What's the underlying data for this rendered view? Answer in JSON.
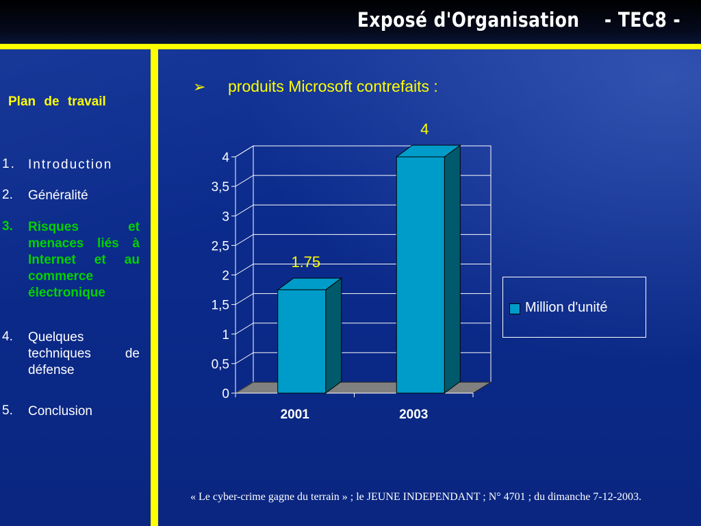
{
  "header": {
    "title": "Exposé d'Organisation    - TEC8 -"
  },
  "sidebar": {
    "title": "Plan de travail",
    "items": [
      {
        "num": "1.",
        "label": "Introduction"
      },
      {
        "num": "2.",
        "label": "Généralité"
      },
      {
        "num": "3.",
        "label": "Risques et menaces liés à Internet et au commerce électronique"
      },
      {
        "num": "4.",
        "label": "Quelques techniques de défense"
      },
      {
        "num": "5.",
        "label": "Conclusion"
      }
    ]
  },
  "main": {
    "bullet": "➢",
    "subtitle": "produits Microsoft contrefaits :",
    "source": "« Le cyber-crime gagne du terrain » ; le JEUNE INDEPENDANT ; N° 4701 ; du dimanche 7-12-2003."
  },
  "colors": {
    "background": "#0b2a8c",
    "accent": "#ffff00",
    "active_item": "#00d200",
    "bar_front": "#009cc9",
    "bar_side": "#005a6b",
    "floor": "#808080"
  },
  "chart_data": {
    "type": "bar",
    "categories": [
      "2001",
      "2003"
    ],
    "series": [
      {
        "name": "Million d'unité",
        "values": [
          1.75,
          4
        ]
      }
    ],
    "data_labels": [
      "1.75",
      "4"
    ],
    "yticks": [
      "0",
      "0,5",
      "1",
      "1,5",
      "2",
      "2,5",
      "3",
      "3,5",
      "4"
    ],
    "ylim": [
      0,
      4
    ],
    "title": "",
    "xlabel": "",
    "ylabel": "",
    "grid": true,
    "legend": "right",
    "style": "3d-column"
  }
}
